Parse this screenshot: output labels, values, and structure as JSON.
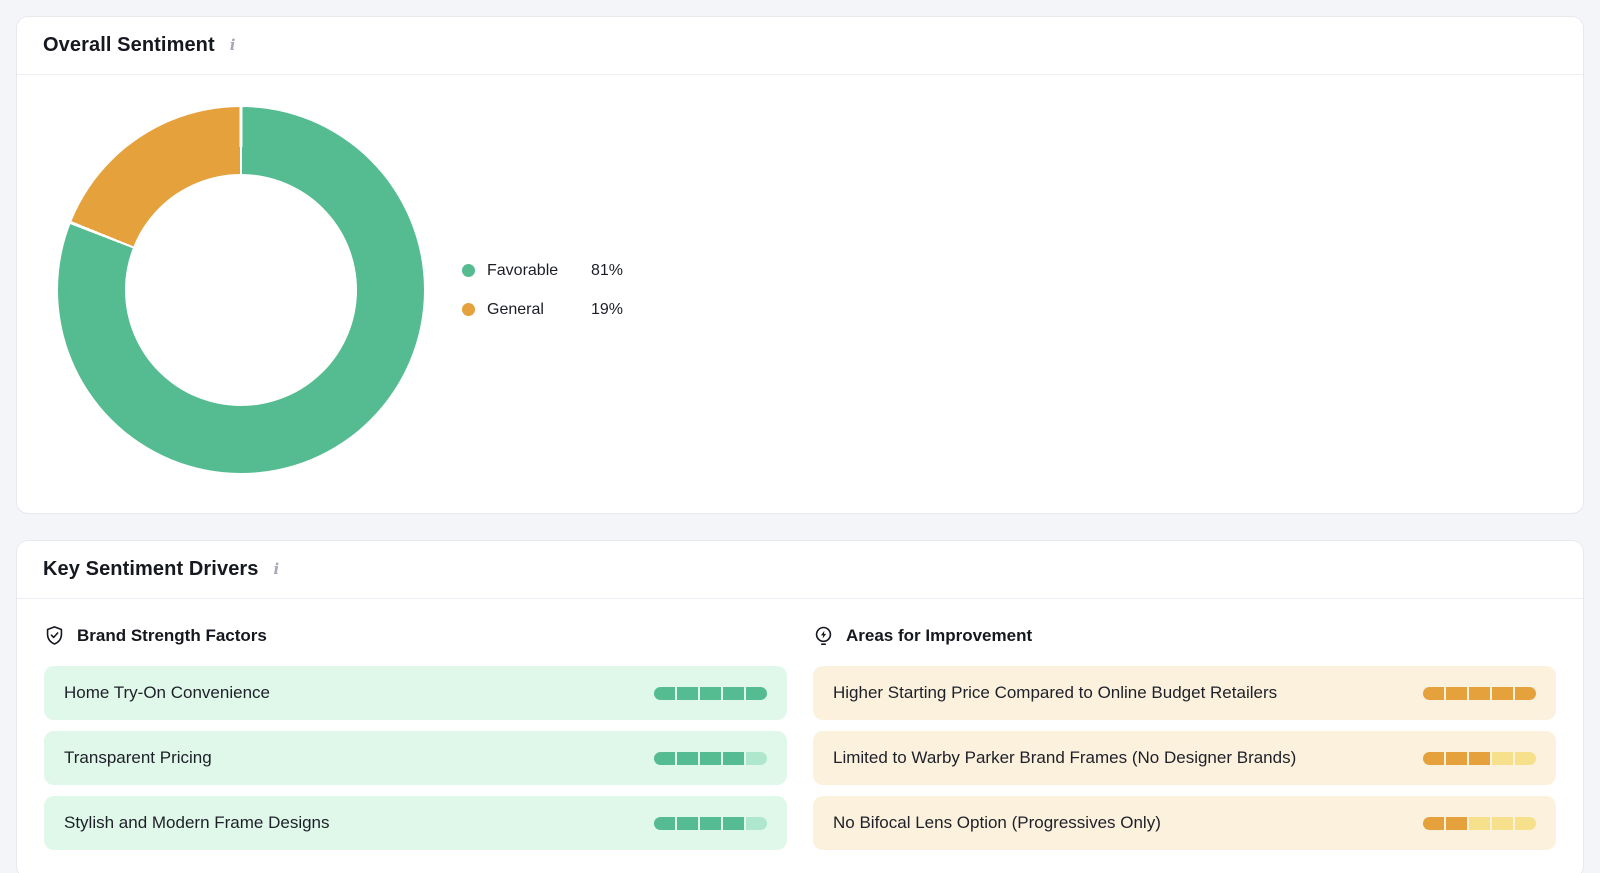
{
  "colors": {
    "favorable_green": "#55bc91",
    "general_orange": "#e5a13b",
    "green_row_bg": "#dff8e9",
    "green_seg_empty": "#aee7cc",
    "orange_row_bg": "#fbf1dd",
    "orange_seg_empty": "#f6e08c",
    "slice_gap_white": "#ffffff"
  },
  "chart_data": {
    "type": "pie",
    "subtype": "donut",
    "title": "Overall Sentiment",
    "labels": [
      "Favorable",
      "General"
    ],
    "values": [
      81,
      19
    ],
    "unit": "%",
    "colors": [
      "#55bc91",
      "#e5a13b"
    ],
    "legend_position": "right",
    "donut_hole_ratio": 0.63,
    "start_angle_deg": 0,
    "direction": "clockwise"
  },
  "overall_sentiment": {
    "title": "Overall Sentiment",
    "legend": [
      {
        "label": "Favorable",
        "value": "81%"
      },
      {
        "label": "General",
        "value": "19%"
      }
    ]
  },
  "key_sentiment_drivers": {
    "title": "Key Sentiment Drivers",
    "strengths": {
      "title": "Brand Strength Factors",
      "icon": "shield-check-icon",
      "max_score": 5,
      "items": [
        {
          "label": "Home Try-On Convenience",
          "score": 5
        },
        {
          "label": "Transparent Pricing",
          "score": 4
        },
        {
          "label": "Stylish and Modern Frame Designs",
          "score": 4
        }
      ]
    },
    "improvements": {
      "title": "Areas for Improvement",
      "icon": "lightbulb-bolt-icon",
      "max_score": 5,
      "items": [
        {
          "label": "Higher Starting Price Compared to Online Budget Retailers",
          "score": 5
        },
        {
          "label": "Limited to Warby Parker Brand Frames (No Designer Brands)",
          "score": 3
        },
        {
          "label": "No Bifocal Lens Option (Progressives Only)",
          "score": 2
        }
      ]
    }
  }
}
